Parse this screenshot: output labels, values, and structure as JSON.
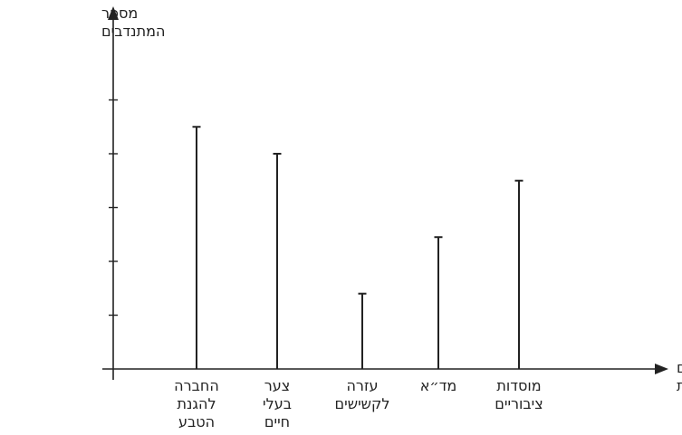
{
  "chart_data": {
    "type": "bar",
    "ylabel": [
      "מספר",
      "המתנדבים"
    ],
    "xlabel": [
      "מקום",
      "ההתנדבות"
    ],
    "categories": [
      [
        "החברה",
        "להגנת",
        "הטבע"
      ],
      [
        "צער",
        "בעלי",
        "חיים"
      ],
      [
        "עזרה",
        "לקשישים"
      ],
      [
        "מד״א"
      ],
      [
        "מוסדות",
        "ציבוריים"
      ]
    ],
    "values": [
      4.5,
      4.0,
      1.4,
      2.45,
      3.5
    ],
    "ylim": [
      0,
      5
    ],
    "y_ticks": [
      1,
      2,
      3,
      4,
      5
    ],
    "y_tick_labels_shown": false,
    "grid": false
  }
}
